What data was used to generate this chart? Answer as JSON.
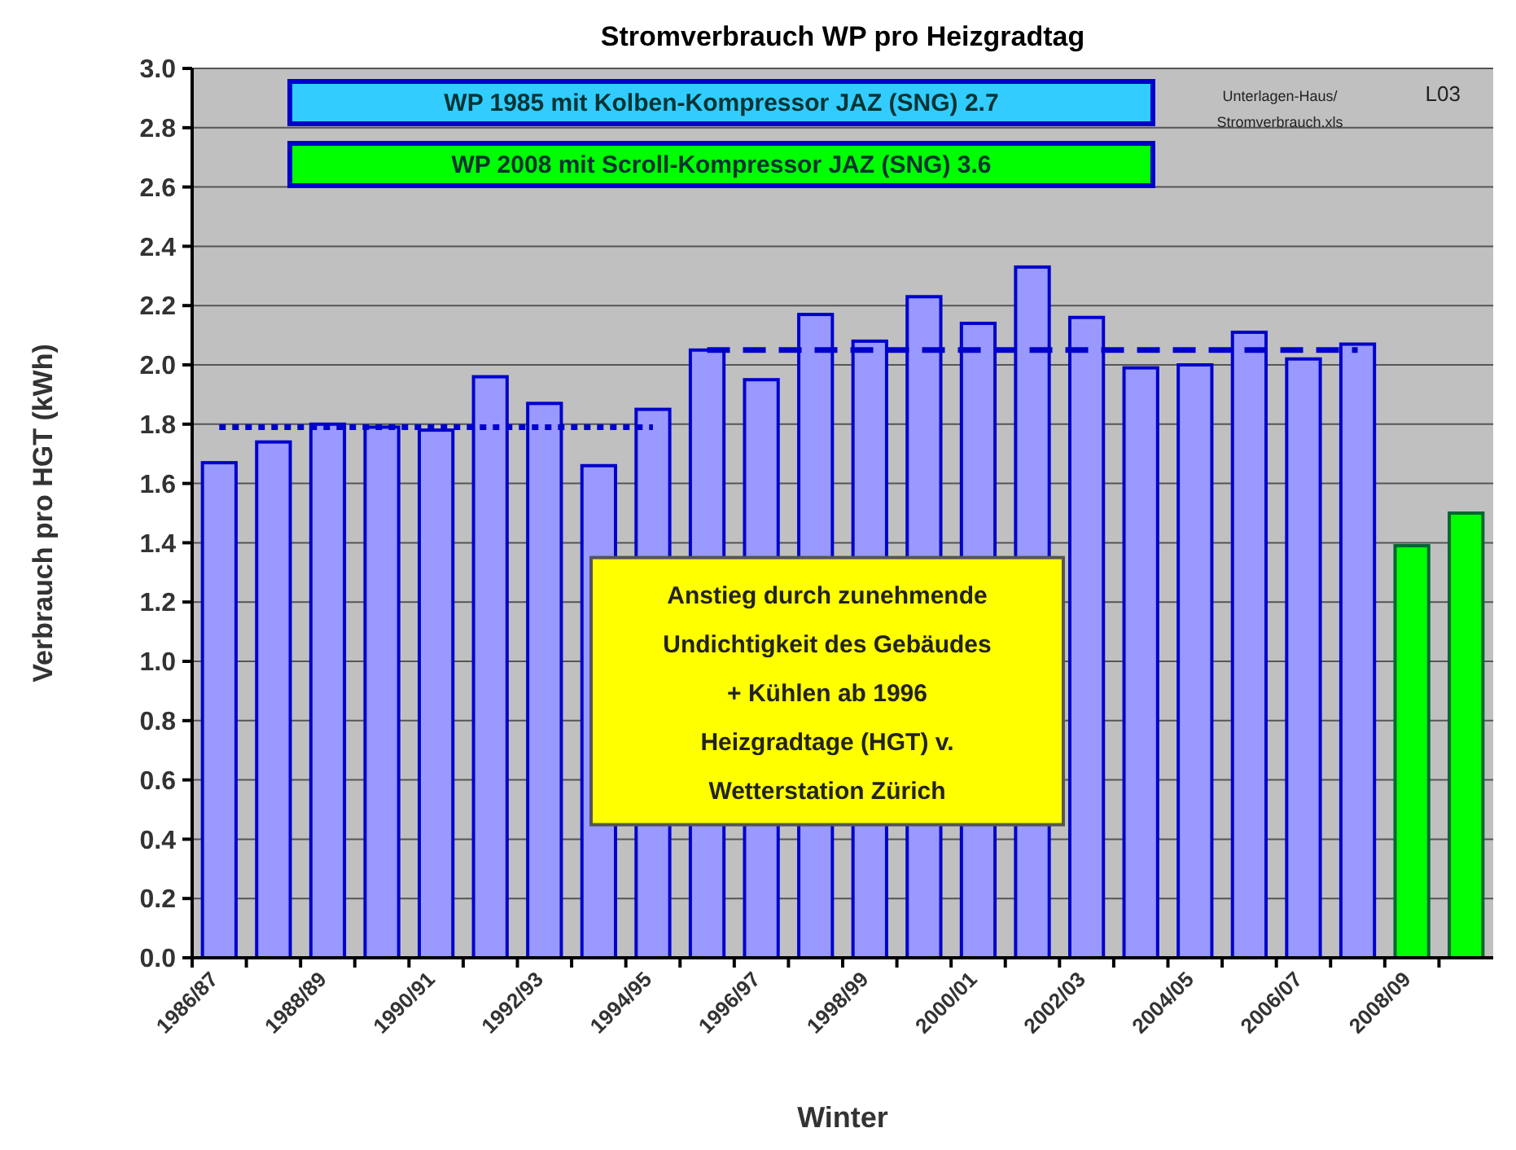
{
  "chart_data": {
    "type": "bar",
    "title": "Stromverbrauch WP pro Heizgradtag",
    "xlabel": "Winter",
    "ylabel": "Verbrauch pro HGT (kWh)",
    "categories": [
      "1986/87",
      null,
      "1988/89",
      null,
      "1990/91",
      null,
      "1992/93",
      null,
      "1994/95",
      null,
      "1996/97",
      null,
      "1998/99",
      null,
      "2000/01",
      null,
      "2002/03",
      null,
      "2004/05",
      null,
      "2006/07",
      null,
      "2008/09",
      null
    ],
    "series": [
      {
        "color": "#9999ff",
        "colors": [
          "#9999ff",
          "#9999ff",
          "#9999ff",
          "#9999ff",
          "#9999ff",
          "#9999ff",
          "#9999ff",
          "#9999ff",
          "#9999ff",
          "#9999ff",
          "#9999ff",
          "#9999ff",
          "#9999ff",
          "#9999ff",
          "#9999ff",
          "#9999ff",
          "#9999ff",
          "#9999ff",
          "#9999ff",
          "#9999ff",
          "#9999ff",
          "#9999ff",
          "#00ff00",
          "#00ff00"
        ],
        "values": [
          1.67,
          1.74,
          1.8,
          1.79,
          1.78,
          1.96,
          1.87,
          1.66,
          1.85,
          2.05,
          1.95,
          2.17,
          2.08,
          2.23,
          2.14,
          2.33,
          2.16,
          1.99,
          2.0,
          2.11,
          2.02,
          2.07,
          1.39,
          1.5
        ]
      },
      {
        "type": "line",
        "color": "#0000cc",
        "line_style": "dotted",
        "values": [
          1.79,
          1.79,
          1.79,
          1.79,
          1.79,
          1.79,
          1.79,
          1.79,
          1.79,
          null,
          null,
          null,
          null,
          null,
          null,
          null,
          null,
          null,
          null,
          null,
          null,
          null,
          null,
          null
        ]
      },
      {
        "type": "line",
        "color": "#0000cc",
        "line_style": "dashed",
        "values": [
          null,
          null,
          null,
          null,
          null,
          null,
          null,
          null,
          null,
          2.05,
          2.05,
          2.05,
          2.05,
          2.05,
          2.05,
          2.05,
          2.05,
          2.05,
          2.05,
          2.05,
          2.05,
          2.05,
          null,
          null
        ]
      }
    ],
    "ylim": [
      0,
      3
    ],
    "yticks": [
      {
        "value": 0,
        "label": "0.0"
      },
      {
        "value": 0.2,
        "label": "0.2"
      },
      {
        "value": 0.4,
        "label": "0.4"
      },
      {
        "value": 0.6,
        "label": "0.6"
      },
      {
        "value": 0.8,
        "label": "0.8"
      },
      {
        "value": 1,
        "label": "1.0"
      },
      {
        "value": 1.2,
        "label": "1.2"
      },
      {
        "value": 1.4,
        "label": "1.4"
      },
      {
        "value": 1.6,
        "label": "1.6"
      },
      {
        "value": 1.8,
        "label": "1.8"
      },
      {
        "value": 2,
        "label": "2.0"
      },
      {
        "value": 2.2,
        "label": "2.2"
      },
      {
        "value": 2.4,
        "label": "2.4"
      },
      {
        "value": 2.6,
        "label": "2.6"
      },
      {
        "value": 2.8,
        "label": "2.8"
      },
      {
        "value": 3,
        "label": "3.0"
      }
    ],
    "grid": "y",
    "annotations": [
      "WP 1985 mit Kolben-Kompressor JAZ (SNG) 2.7",
      "WP 2008 mit Scroll-Kompressor JAZ (SNG) 3.6",
      "Anstieg durch zunehmende\nUndichtigkeit des Gebäudes\n+ Kühlen ab 1996\nHeizgradtage (HGT) v.\nWetterstation Zürich",
      "Unterlagen-Haus/\nStromverbrauch.xls",
      "L03"
    ]
  }
}
